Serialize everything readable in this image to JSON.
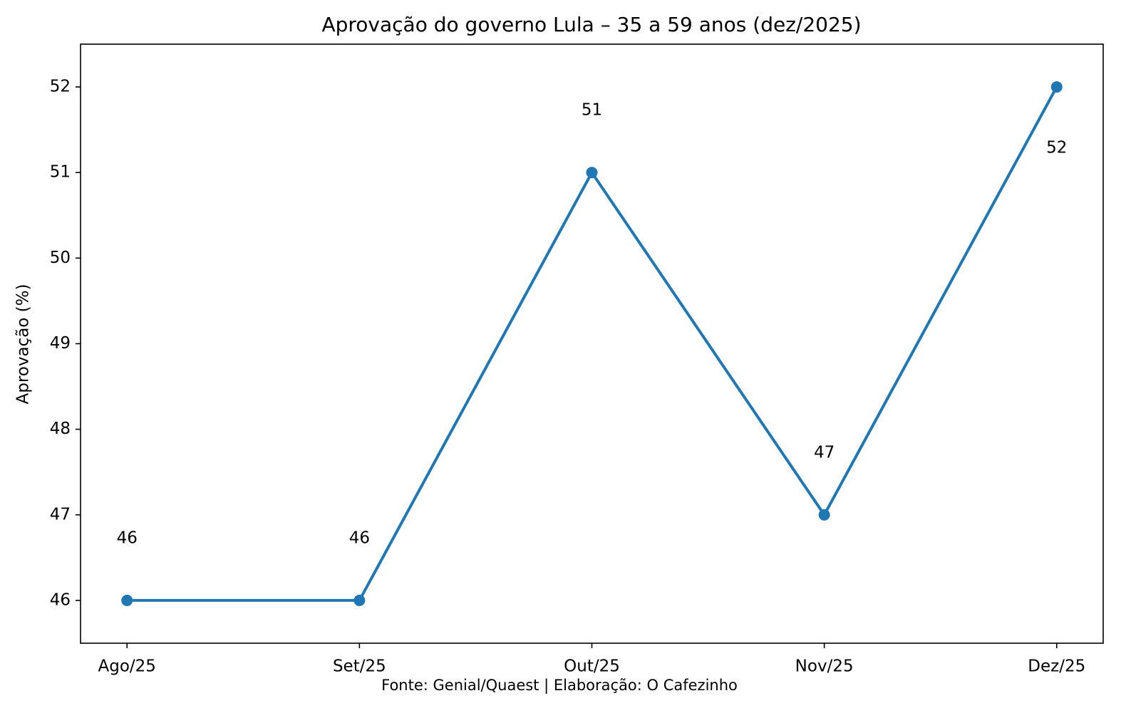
{
  "chart_data": {
    "type": "line",
    "title": "Aprovação do governo Lula – 35 a 59 anos (dez/2025)",
    "y_label": "Aprovação (%)",
    "footnote": "Fonte: Genial/Quaest | Elaboração: O Cafezinho",
    "categories": [
      "Ago/25",
      "Set/25",
      "Out/25",
      "Nov/25",
      "Dez/25"
    ],
    "values": [
      46,
      46,
      51,
      47,
      52
    ],
    "color": "#1f77b4",
    "ylim": [
      45.5,
      52.5
    ],
    "yticks": [
      46,
      47,
      48,
      49,
      50,
      51,
      52
    ],
    "grid": false
  }
}
